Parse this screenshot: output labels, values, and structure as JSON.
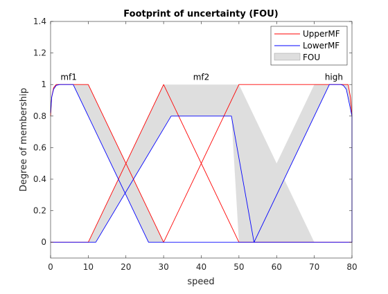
{
  "chart_data": {
    "type": "line",
    "title": "Footprint of uncertainty (FOU)",
    "xlabel": "speed",
    "ylabel": "Degree of membership",
    "xlim": [
      0,
      80
    ],
    "ylim": [
      -0.1,
      1.4
    ],
    "xticks": [
      "0",
      "10",
      "20",
      "30",
      "40",
      "50",
      "60",
      "70",
      "80"
    ],
    "yticks": [
      "0",
      "0.2",
      "0.4",
      "0.6",
      "0.8",
      "1",
      "1.2",
      "1.4"
    ],
    "grid": false,
    "legend_position": "top-right",
    "colors": {
      "upper": "#ff0000",
      "lower": "#0000ff",
      "fou": "#dedede"
    },
    "legend": [
      "UpperMF",
      "LowerMF",
      "FOU"
    ],
    "series": [
      {
        "name": "UpperMF",
        "x": [
          0,
          0.3,
          0.8,
          1.5,
          2.5,
          6,
          10,
          30,
          50,
          70,
          74,
          78,
          79,
          79.6,
          80,
          80,
          60,
          50,
          30,
          10,
          0
        ],
        "y": [
          0.8,
          0.92,
          0.98,
          1,
          1,
          1,
          1,
          0,
          1,
          1,
          1,
          1,
          1,
          0.92,
          0.8,
          0,
          0,
          0,
          1,
          0,
          0
        ]
      },
      {
        "name": "LowerMF",
        "x": [
          0,
          0.3,
          0.8,
          1.5,
          2.5,
          4,
          6,
          26,
          80,
          80,
          78.5,
          77.7,
          77,
          76,
          74,
          54,
          48,
          32,
          12,
          0
        ],
        "y": [
          0.82,
          0.92,
          0.97,
          0.995,
          1,
          1,
          1,
          0,
          0,
          0.8,
          0.97,
          0.995,
          1,
          1,
          1,
          0,
          0.8,
          0.8,
          0,
          0
        ]
      }
    ],
    "fou_regions": [
      {
        "x": [
          0,
          0.3,
          0.8,
          1.5,
          2.5,
          10,
          30,
          26,
          6,
          4,
          2.5,
          1.5,
          0.8,
          0.3,
          0
        ],
        "y": [
          0.8,
          0.92,
          0.98,
          1,
          1,
          1,
          0,
          0,
          1,
          1,
          1,
          0.995,
          0.97,
          0.92,
          0.82
        ]
      },
      {
        "x": [
          10,
          30,
          50,
          70,
          50,
          48,
          32,
          12
        ],
        "y": [
          0,
          1,
          1,
          0,
          0,
          0.8,
          0.8,
          0
        ]
      },
      {
        "x": [
          50,
          70,
          74,
          78,
          79,
          79.6,
          80,
          80,
          78.5,
          77.7,
          77,
          76,
          74,
          54
        ],
        "y": [
          0,
          1,
          1,
          1,
          1,
          0.92,
          0.8,
          0.8,
          0.97,
          0.995,
          1,
          1,
          1,
          0
        ]
      }
    ],
    "annotations": [
      {
        "text": "mf1",
        "x": 4.8,
        "y": 1.03
      },
      {
        "text": "mf2",
        "x": 40,
        "y": 1.03
      },
      {
        "text": "high",
        "x": 75.2,
        "y": 1.03
      }
    ]
  }
}
